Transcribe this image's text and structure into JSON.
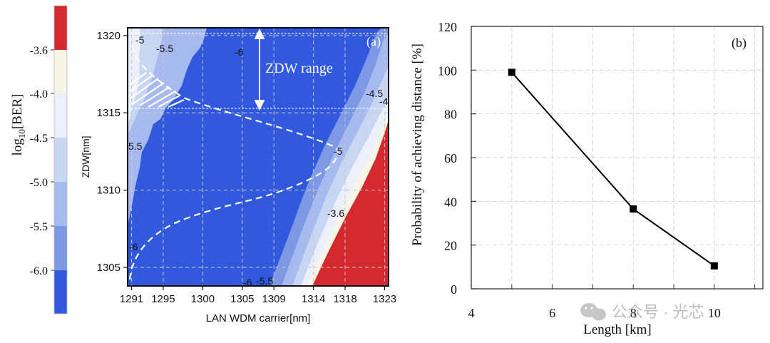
{
  "colorbar": {
    "label": "log10[BER]",
    "label_base": "log",
    "label_sub": "10",
    "label_tail": "[BER]",
    "ticks": [
      "-3.6",
      "-4.0",
      "-4.5",
      "-5.0",
      "-5.5",
      "-6.0"
    ],
    "bands": [
      "#d42a2f",
      "#f7f5e6",
      "#ecf0fa",
      "#c9d6f3",
      "#a6baf0",
      "#7d99e6",
      "#3158dd"
    ]
  },
  "chart_data": [
    {
      "type": "heatmap",
      "panel_label": "(a)",
      "xlabel": "LAN WDM carrier[nm]",
      "ylabel": "ZDW[nm]",
      "xticks": [
        "1291",
        "1295",
        "1300",
        "1305",
        "1309",
        "1314",
        "1318",
        "1323"
      ],
      "xtick_values": [
        1291,
        1295,
        1300,
        1305,
        1309,
        1314,
        1318,
        1323
      ],
      "yticks": [
        "1305",
        "1310",
        "1315",
        "1320"
      ],
      "ytick_values": [
        1305,
        1310,
        1315,
        1320
      ],
      "xlim": [
        1290.5,
        1323.5
      ],
      "ylim": [
        1303.8,
        1320.5
      ],
      "color_levels": [
        -6.0,
        -5.5,
        -5.0,
        -4.5,
        -4.0,
        -3.6
      ],
      "contour_labels": [
        "-5",
        "-5.5",
        "-6",
        "-4.5",
        "-4",
        "5.5",
        "-5",
        "-3.6",
        "-6",
        "-6",
        "-5.5"
      ],
      "annotation": "ZDW range",
      "zdw_range": [
        1315.2,
        1320.5
      ],
      "colors": {
        "red": "#d42a2f",
        "cream": "#f7f5e6",
        "pale": "#ecf0fa",
        "light": "#c9d6f3",
        "mid": "#a6baf0",
        "midblue": "#7d99e6",
        "blue": "#3158dd",
        "deep": "#2a50d6"
      }
    },
    {
      "type": "line",
      "panel_label": "(b)",
      "xlabel": "Length [km]",
      "ylabel": "Probability of achieving distance [%]",
      "x": [
        5,
        8,
        10
      ],
      "y": [
        99,
        36.5,
        10.5
      ],
      "xlim": [
        4,
        11.2
      ],
      "ylim": [
        0,
        120
      ],
      "xticks": [
        "4",
        "6",
        "8",
        "10"
      ],
      "xtick_values": [
        4,
        6,
        8,
        10
      ],
      "yticks": [
        "0",
        "20",
        "40",
        "60",
        "80",
        "100",
        "120"
      ],
      "ytick_values": [
        0,
        20,
        40,
        60,
        80,
        100,
        120
      ],
      "grid": true,
      "marker": "square",
      "line_color": "#000000"
    }
  ],
  "watermark": "公众号 · 光芯"
}
